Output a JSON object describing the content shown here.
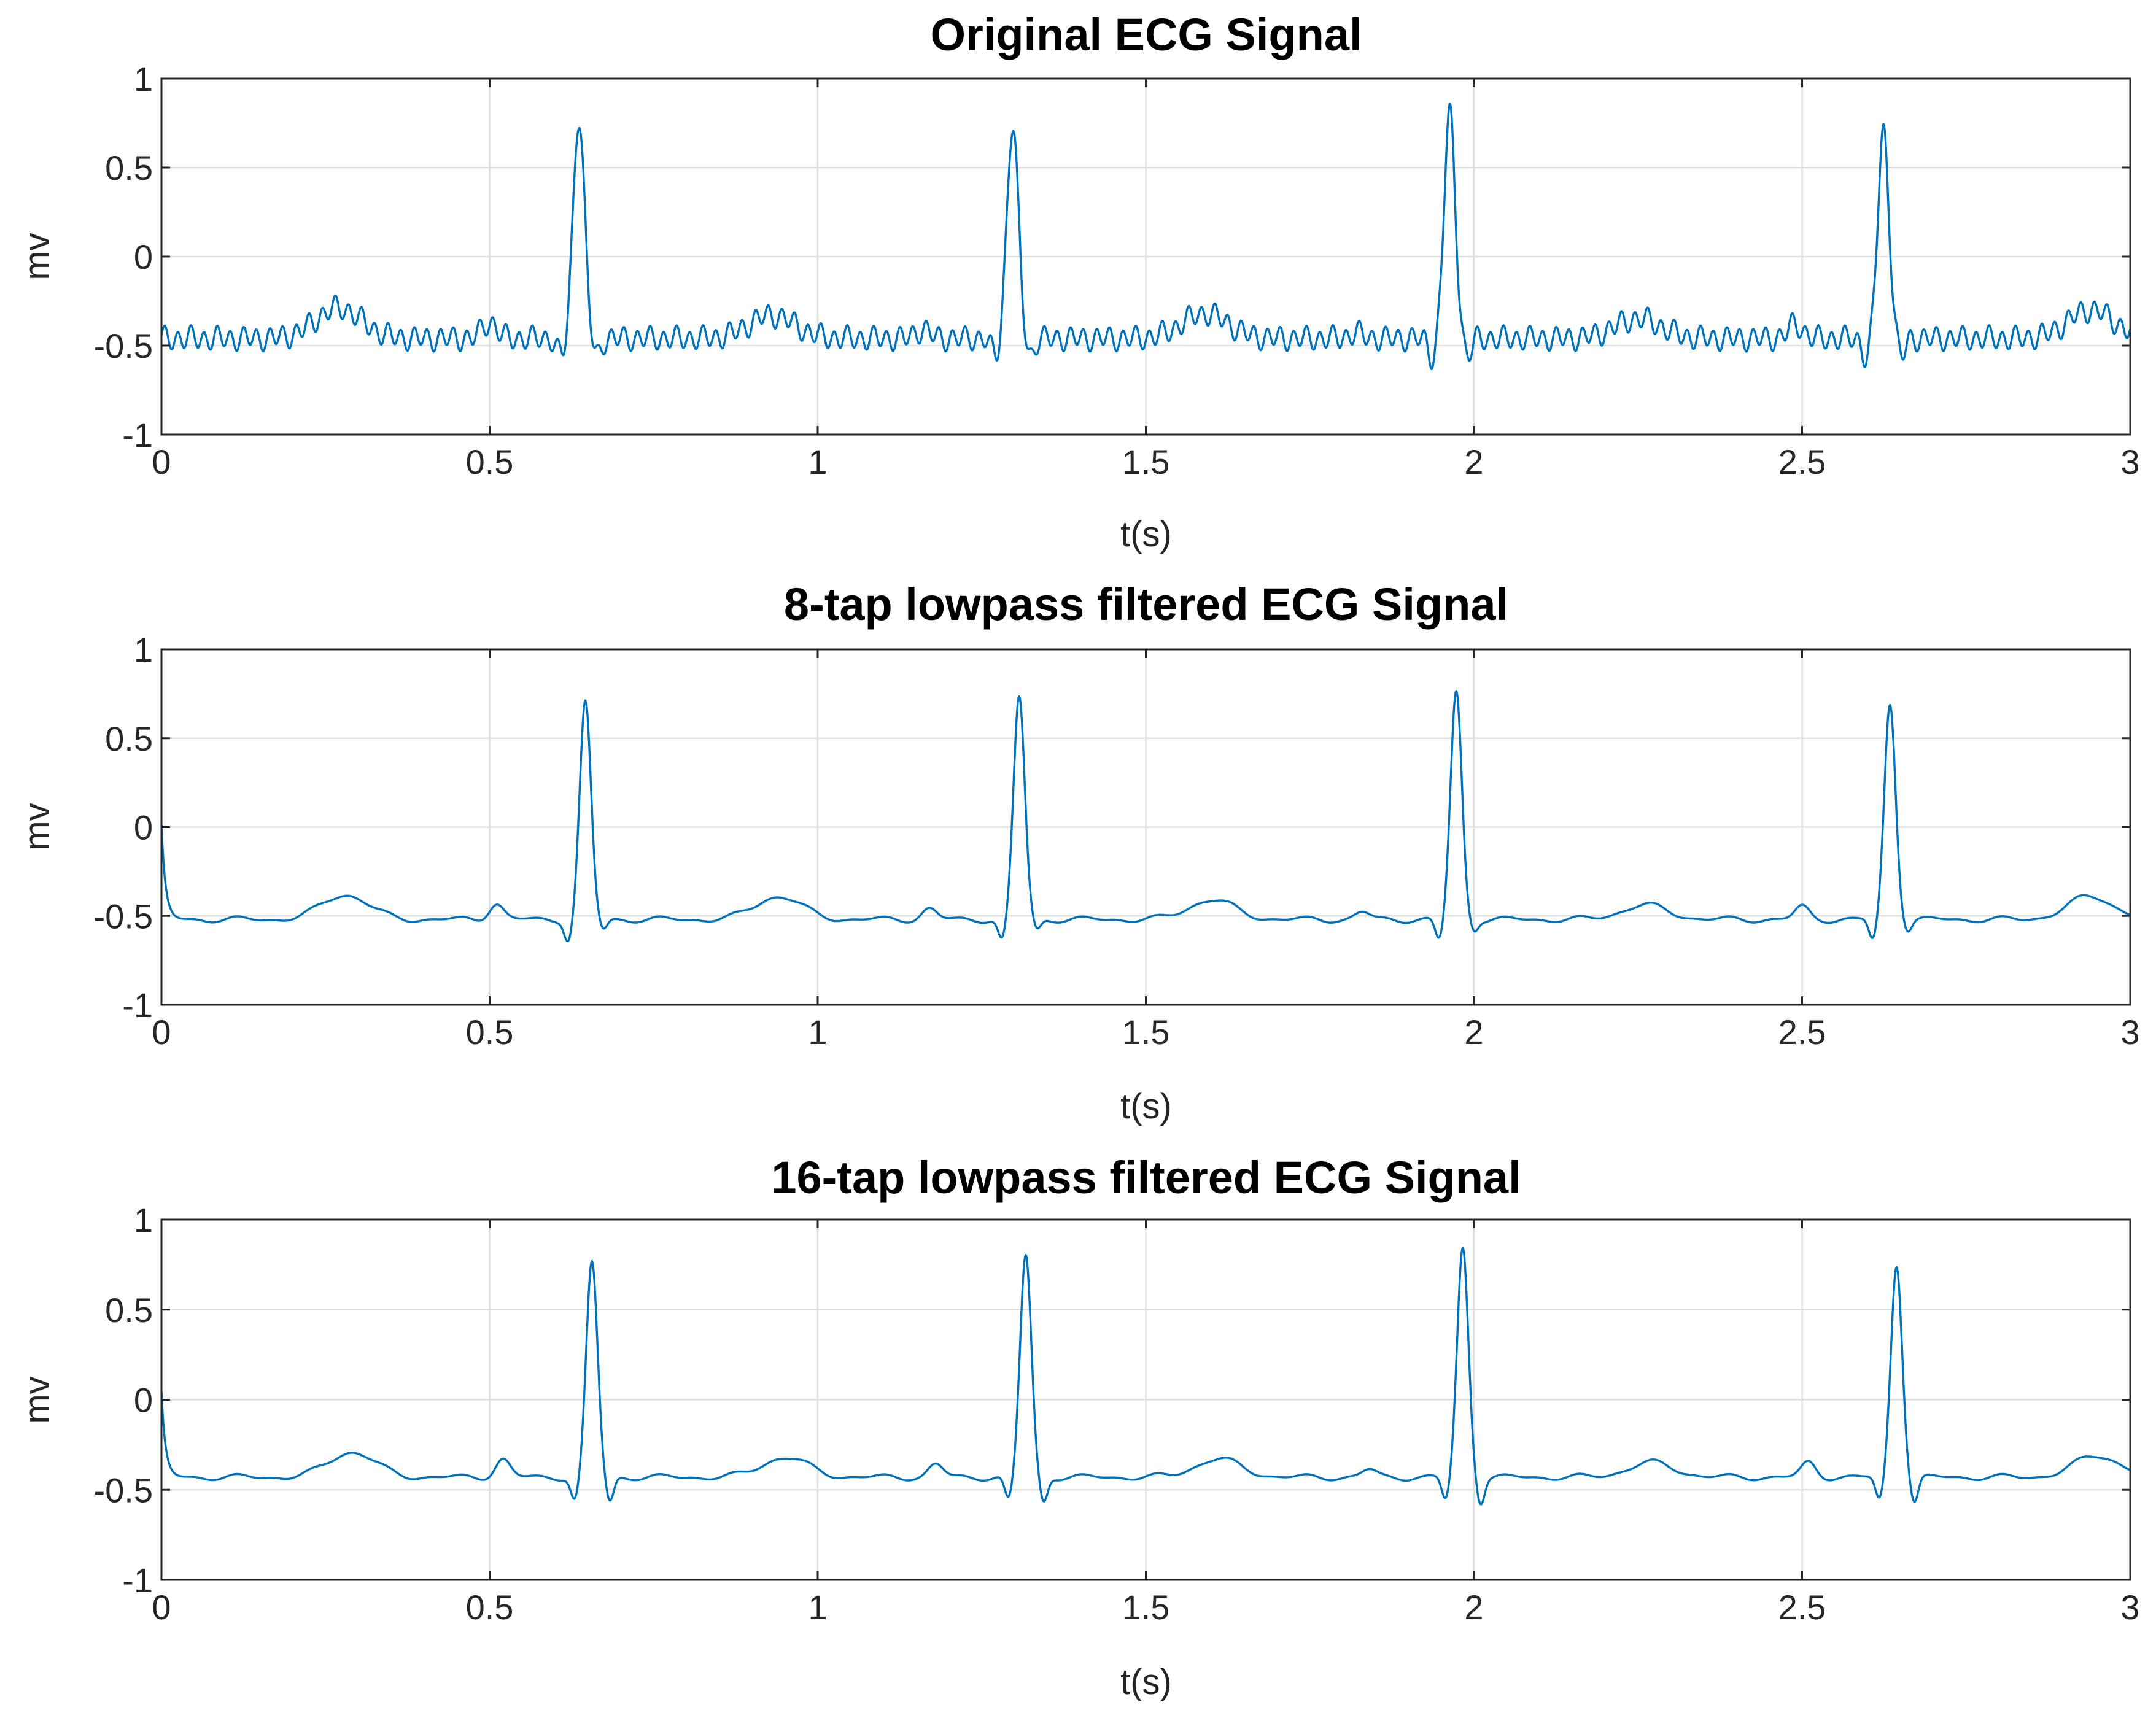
{
  "chart_data": [
    {
      "type": "line",
      "title": "Original ECG Signal",
      "xlabel": "t(s)",
      "ylabel": "mv",
      "xlim": [
        0,
        3
      ],
      "ylim": [
        -1,
        1
      ],
      "grid": true,
      "color": "#0072BD",
      "xticks": [
        0,
        0.5,
        1,
        1.5,
        2,
        2.5,
        3
      ],
      "xtick_labels": [
        "0",
        "0.5",
        "1",
        "1.5",
        "2",
        "2.5",
        "3"
      ],
      "yticks": [
        -1,
        -0.5,
        0,
        0.5,
        1
      ],
      "ytick_labels": [
        "-1",
        "-0.5",
        "0",
        "0.5",
        "1"
      ],
      "signal": {
        "baseline_mv": -0.46,
        "start_value_mv": -0.46,
        "peaks": [
          {
            "t": 0.636,
            "value": 0.79
          },
          {
            "t": 1.297,
            "value": 0.74
          },
          {
            "t": 1.963,
            "value": 0.8
          },
          {
            "t": 2.624,
            "value": 0.7
          }
        ],
        "t_waves": [
          {
            "t": 0.27,
            "value": -0.29
          },
          {
            "t": 0.93,
            "value": -0.33
          },
          {
            "t": 1.59,
            "value": -0.32
          },
          {
            "t": 2.25,
            "value": -0.35
          },
          {
            "t": 2.94,
            "value": -0.3
          }
        ],
        "p_waves": [
          {
            "t": 0.5,
            "value": -0.37
          },
          {
            "t": 1.16,
            "value": -0.41
          },
          {
            "t": 1.82,
            "value": -0.43
          },
          {
            "t": 2.49,
            "value": -0.38
          }
        ],
        "q_dip_mv": -0.57,
        "s_dip_mv": -0.56,
        "noise_amplitude_mv": 0.055
      }
    },
    {
      "type": "line",
      "title": "8-tap lowpass filtered ECG Signal",
      "xlabel": "t(s)",
      "ylabel": "mv",
      "xlim": [
        0,
        3
      ],
      "ylim": [
        -1,
        1
      ],
      "grid": true,
      "color": "#0072BD",
      "xticks": [
        0,
        0.5,
        1,
        1.5,
        2,
        2.5,
        3
      ],
      "xtick_labels": [
        "0",
        "0.5",
        "1",
        "1.5",
        "2",
        "2.5",
        "3"
      ],
      "yticks": [
        -1,
        -0.5,
        0,
        0.5,
        1
      ],
      "ytick_labels": [
        "-1",
        "-0.5",
        "0",
        "0.5",
        "1"
      ],
      "signal": {
        "baseline_mv": -0.52,
        "start_value_mv": 0.0,
        "peaks": [
          {
            "t": 0.646,
            "value": 0.7
          },
          {
            "t": 1.307,
            "value": 0.73
          },
          {
            "t": 1.973,
            "value": 0.76
          },
          {
            "t": 2.634,
            "value": 0.69
          }
        ],
        "t_waves": [
          {
            "t": 0.28,
            "value": -0.38
          },
          {
            "t": 0.94,
            "value": -0.39
          },
          {
            "t": 1.6,
            "value": -0.41
          },
          {
            "t": 2.26,
            "value": -0.44
          },
          {
            "t": 2.94,
            "value": -0.39
          }
        ],
        "p_waves": [
          {
            "t": 0.51,
            "value": -0.43
          },
          {
            "t": 1.17,
            "value": -0.46
          },
          {
            "t": 1.83,
            "value": -0.48
          },
          {
            "t": 2.5,
            "value": -0.45
          }
        ],
        "q_dip_mv": -0.64,
        "s_dip_mv": -0.58,
        "noise_amplitude_mv": 0.012
      }
    },
    {
      "type": "line",
      "title": "16-tap lowpass filtered ECG Signal",
      "xlabel": "t(s)",
      "ylabel": "mv",
      "xlim": [
        0,
        3
      ],
      "ylim": [
        -1,
        1
      ],
      "grid": true,
      "color": "#0072BD",
      "xticks": [
        0,
        0.5,
        1,
        1.5,
        2,
        2.5,
        3
      ],
      "xtick_labels": [
        "0",
        "0.5",
        "1",
        "1.5",
        "2",
        "2.5",
        "3"
      ],
      "yticks": [
        -1,
        -0.5,
        0,
        0.5,
        1
      ],
      "ytick_labels": [
        "-1",
        "-0.5",
        "0",
        "0.5",
        "1"
      ],
      "signal": {
        "baseline_mv": -0.43,
        "start_value_mv": 0.03,
        "peaks": [
          {
            "t": 0.656,
            "value": 0.76
          },
          {
            "t": 1.317,
            "value": 0.8
          },
          {
            "t": 1.983,
            "value": 0.84
          },
          {
            "t": 2.644,
            "value": 0.75
          }
        ],
        "t_waves": [
          {
            "t": 0.29,
            "value": -0.29
          },
          {
            "t": 0.95,
            "value": -0.32
          },
          {
            "t": 1.61,
            "value": -0.33
          },
          {
            "t": 2.27,
            "value": -0.35
          },
          {
            "t": 2.95,
            "value": -0.31
          }
        ],
        "p_waves": [
          {
            "t": 0.52,
            "value": -0.33
          },
          {
            "t": 1.18,
            "value": -0.36
          },
          {
            "t": 1.84,
            "value": -0.39
          },
          {
            "t": 2.51,
            "value": -0.35
          }
        ],
        "q_dip_mv": -0.56,
        "s_dip_mv": -0.57,
        "noise_amplitude_mv": 0.012
      }
    }
  ]
}
